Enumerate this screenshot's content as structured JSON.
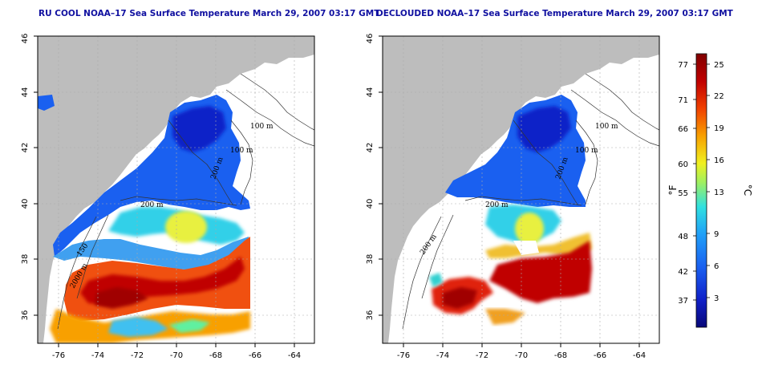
{
  "titles": {
    "left": "RU COOL NOAA–17 Sea Surface Temperature March 29, 2007 03:17 GMT",
    "right": "DECLOUDED NOAA–17 Sea Surface Temperature March 29, 2007 03:17 GMT"
  },
  "axes": {
    "lon_ticks": [
      "-76",
      "-74",
      "-72",
      "-70",
      "-68",
      "-66",
      "-64"
    ],
    "lat_ticks": [
      "36",
      "38",
      "40",
      "42",
      "44",
      "46"
    ]
  },
  "contour_labels_left": [
    "100 m",
    "100 m",
    "200 m",
    "200 m",
    "150",
    "2000 m"
  ],
  "contour_labels_right": [
    "100 m",
    "100 m",
    "200 m",
    "200 m",
    "200 m"
  ],
  "colorbar": {
    "fahrenheit_ticks": [
      "77",
      "71",
      "66",
      "60",
      "55",
      "48",
      "42",
      "37"
    ],
    "celsius_ticks": [
      "25",
      "22",
      "19",
      "16",
      "13",
      "9",
      "6",
      "3"
    ],
    "fahrenheit_unit": "°F",
    "celsius_unit": "°C",
    "colors": [
      "#080878",
      "#1020c8",
      "#1a60f0",
      "#20a0f8",
      "#30e0e0",
      "#a0f060",
      "#f0f020",
      "#f8a000",
      "#f04000",
      "#c00000",
      "#800000"
    ]
  },
  "colors": {
    "land": "#bdbdbd",
    "title": "#1010a0"
  }
}
